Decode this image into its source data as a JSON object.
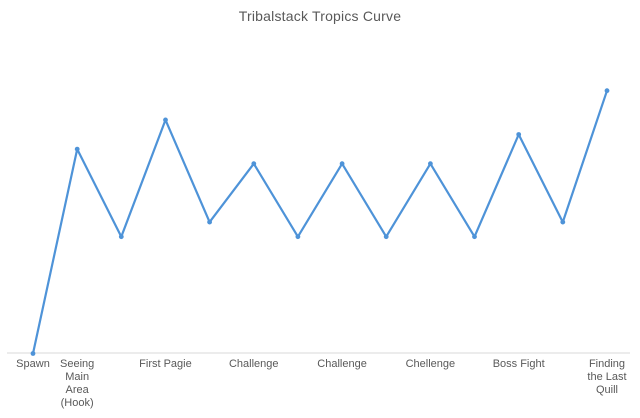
{
  "chart": {
    "title": "Tribalstack Tropics Curve"
  },
  "chart_data": {
    "type": "line",
    "title": "Tribalstack Tropics Curve",
    "categories": [
      "Spawn",
      "Seeing Main Area (Hook)",
      "",
      "First Pagie",
      "",
      "Challenge",
      "",
      "Challenge",
      "",
      "Chellenge",
      "",
      "Boss Fight",
      "",
      "Finding the Last Quill"
    ],
    "values": [
      0,
      7,
      4,
      8,
      4.5,
      6.5,
      4,
      6.5,
      4,
      6.5,
      4,
      7.5,
      4.5,
      9
    ],
    "xlabel": "",
    "ylabel": "",
    "ylim": [
      0,
      10
    ],
    "y_axis_visible": false,
    "grid": false,
    "legend": false,
    "marker": "circle",
    "colors": {
      "line": "#4e93d8",
      "marker": "#4e93d8",
      "axis_line": "#d9d9d9",
      "text": "#595959",
      "background": "#ffffff"
    },
    "tick_labels": [
      {
        "index": 0,
        "lines": [
          "Spawn"
        ]
      },
      {
        "index": 1,
        "lines": [
          "Seeing",
          "Main",
          "Area",
          "(Hook)"
        ]
      },
      {
        "index": 3,
        "lines": [
          "First Pagie"
        ]
      },
      {
        "index": 5,
        "lines": [
          "Challenge"
        ]
      },
      {
        "index": 7,
        "lines": [
          "Challenge"
        ]
      },
      {
        "index": 9,
        "lines": [
          "Chellenge"
        ]
      },
      {
        "index": 11,
        "lines": [
          "Boss Fight"
        ]
      },
      {
        "index": 13,
        "lines": [
          "Finding",
          "the Last",
          "Quill"
        ]
      }
    ]
  }
}
